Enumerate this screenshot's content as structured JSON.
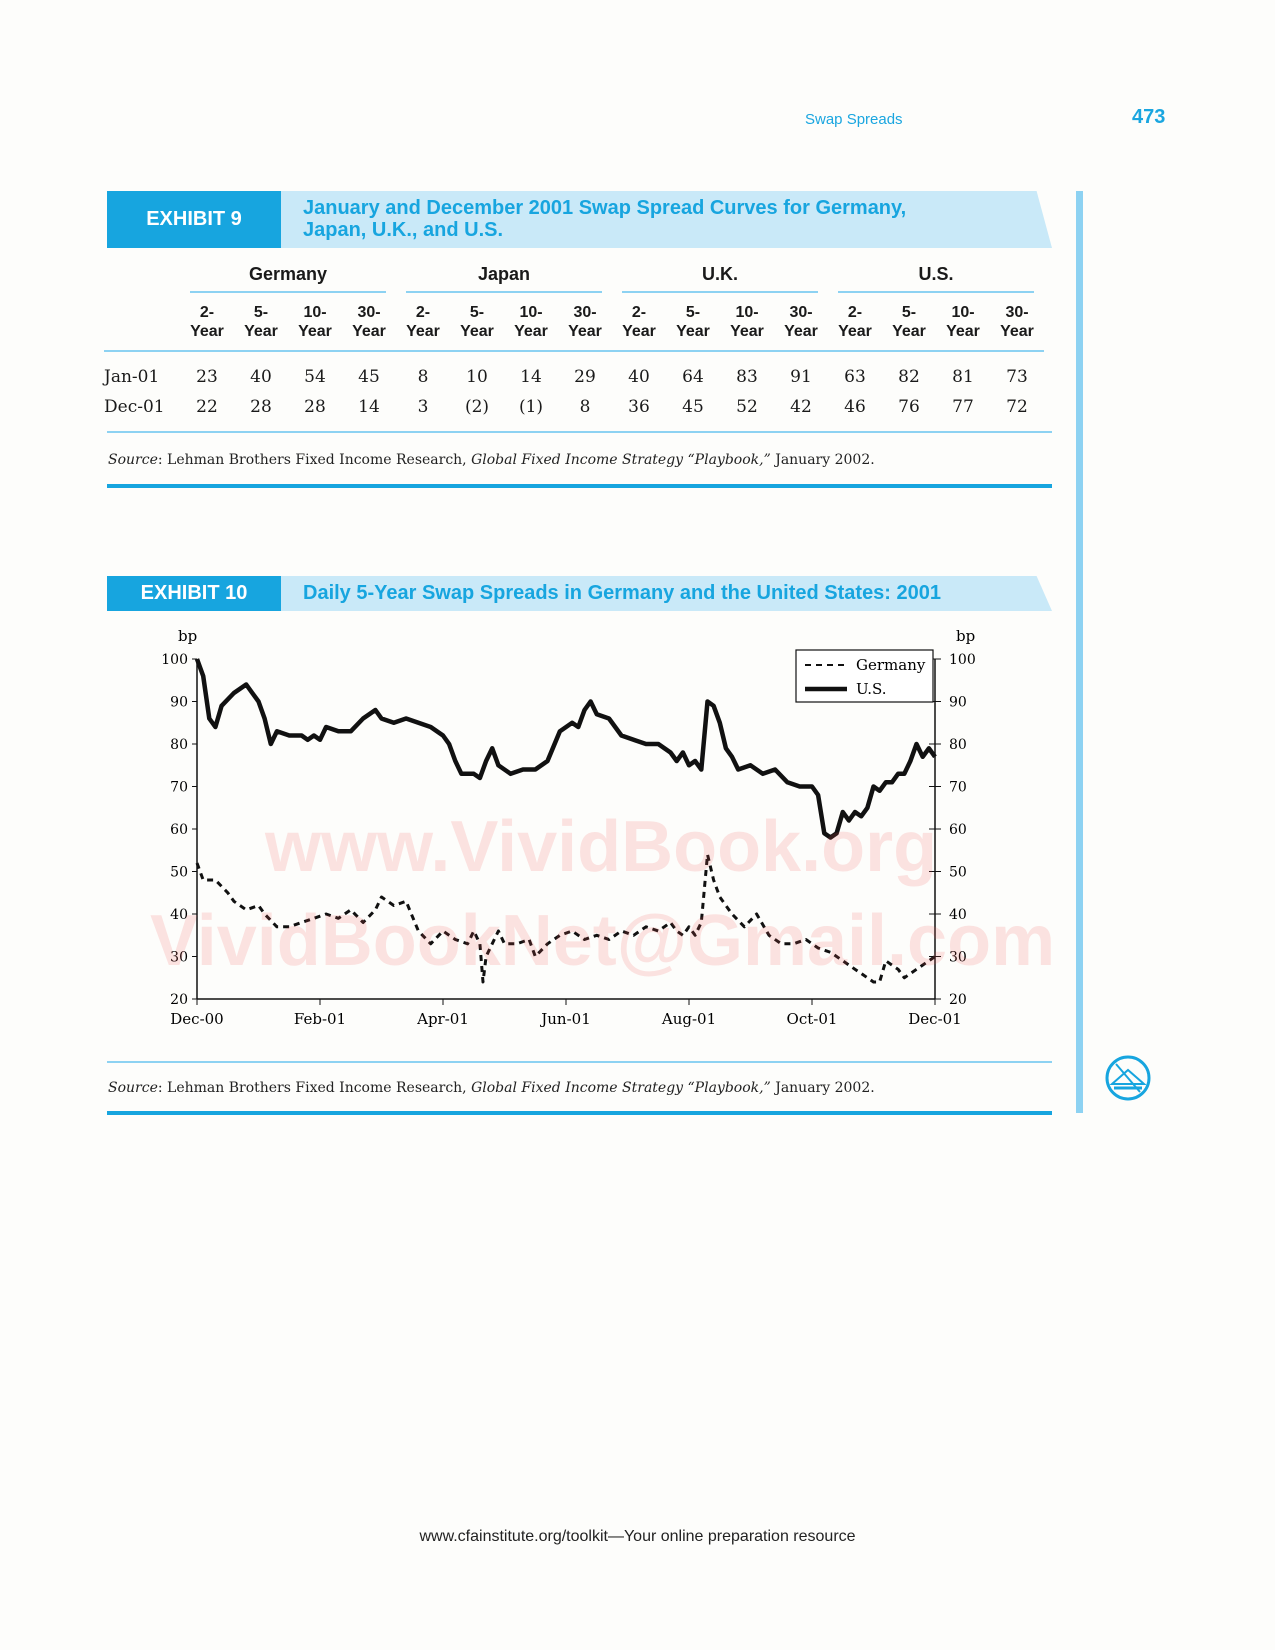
{
  "header": {
    "running_head": "Swap Spreads",
    "page_number": "473"
  },
  "exhibit9": {
    "label": "EXHIBIT 9",
    "title_line1": "January and December 2001 Swap Spread Curves for Germany,",
    "title_line2": "Japan, U.K., and U.S.",
    "countries": [
      "Germany",
      "Japan",
      "U.K.",
      "U.S."
    ],
    "tenors": [
      [
        "2-",
        "Year"
      ],
      [
        "5-",
        "Year"
      ],
      [
        "10-",
        "Year"
      ],
      [
        "30-",
        "Year"
      ],
      [
        "2-",
        "Year"
      ],
      [
        "5-",
        "Year"
      ],
      [
        "10-",
        "Year"
      ],
      [
        "30-",
        "Year"
      ],
      [
        "2-",
        "Year"
      ],
      [
        "5-",
        "Year"
      ],
      [
        "10-",
        "Year"
      ],
      [
        "30-",
        "Year"
      ],
      [
        "2-",
        "Year"
      ],
      [
        "5-",
        "Year"
      ],
      [
        "10-",
        "Year"
      ],
      [
        "30-",
        "Year"
      ]
    ],
    "rows": [
      {
        "label": "Jan-01",
        "values": [
          "23",
          "40",
          "54",
          "45",
          "8",
          "10",
          "14",
          "29",
          "40",
          "64",
          "83",
          "91",
          "63",
          "82",
          "81",
          "73"
        ]
      },
      {
        "label": "Dec-01",
        "values": [
          "22",
          "28",
          "28",
          "14",
          "3",
          "(2)",
          "(1)",
          "8",
          "36",
          "45",
          "52",
          "42",
          "46",
          "76",
          "77",
          "72"
        ]
      }
    ],
    "source": {
      "prefix": "Source",
      "text1": ": Lehman Brothers Fixed Income Research, ",
      "italic": "Global Fixed Income Strategy “Playbook,”",
      "text2": " January 2002."
    }
  },
  "exhibit10": {
    "label": "EXHIBIT 10",
    "title": "Daily 5-Year Swap Spreads in Germany and the United States: 2001",
    "source": {
      "prefix": "Source",
      "text1": ": Lehman Brothers Fixed Income Research, ",
      "italic": "Global Fixed Income Strategy “Playbook,”",
      "text2": " January 2002."
    }
  },
  "chart_data": {
    "type": "line",
    "title": "",
    "ylabel_left": "bp",
    "ylabel_right": "bp",
    "ylim": [
      20,
      100
    ],
    "yticks": [
      20,
      30,
      40,
      50,
      60,
      70,
      80,
      90,
      100
    ],
    "xlim": [
      0,
      12
    ],
    "xticks": [
      {
        "x": 0,
        "label": "Dec-00"
      },
      {
        "x": 2,
        "label": "Feb-01"
      },
      {
        "x": 4,
        "label": "Apr-01"
      },
      {
        "x": 6,
        "label": "Jun-01"
      },
      {
        "x": 8,
        "label": "Aug-01"
      },
      {
        "x": 10,
        "label": "Oct-01"
      },
      {
        "x": 12,
        "label": "Dec-01"
      }
    ],
    "legend_position": "top-right",
    "grid": false,
    "series": [
      {
        "name": "Germany",
        "style": "dashed",
        "points": [
          [
            0,
            52
          ],
          [
            0.1,
            48
          ],
          [
            0.3,
            48
          ],
          [
            0.5,
            45
          ],
          [
            0.6,
            43
          ],
          [
            0.8,
            41
          ],
          [
            1.0,
            42
          ],
          [
            1.1,
            40
          ],
          [
            1.3,
            37
          ],
          [
            1.5,
            37
          ],
          [
            1.7,
            38
          ],
          [
            1.9,
            39
          ],
          [
            2.1,
            40
          ],
          [
            2.3,
            39
          ],
          [
            2.5,
            41
          ],
          [
            2.7,
            38
          ],
          [
            2.9,
            41
          ],
          [
            3.0,
            44
          ],
          [
            3.2,
            42
          ],
          [
            3.4,
            43
          ],
          [
            3.6,
            36
          ],
          [
            3.8,
            33
          ],
          [
            4.0,
            36
          ],
          [
            4.2,
            34
          ],
          [
            4.4,
            33
          ],
          [
            4.5,
            36
          ],
          [
            4.6,
            33
          ],
          [
            4.65,
            24
          ],
          [
            4.7,
            30
          ],
          [
            4.8,
            33
          ],
          [
            4.9,
            36
          ],
          [
            5.0,
            33
          ],
          [
            5.2,
            33
          ],
          [
            5.4,
            34
          ],
          [
            5.5,
            30
          ],
          [
            5.7,
            33
          ],
          [
            5.9,
            35
          ],
          [
            6.1,
            36
          ],
          [
            6.3,
            34
          ],
          [
            6.5,
            35
          ],
          [
            6.7,
            34
          ],
          [
            6.9,
            36
          ],
          [
            7.1,
            35
          ],
          [
            7.3,
            37
          ],
          [
            7.5,
            36
          ],
          [
            7.7,
            38
          ],
          [
            7.8,
            36
          ],
          [
            7.9,
            35
          ],
          [
            8.0,
            37
          ],
          [
            8.1,
            35
          ],
          [
            8.2,
            38
          ],
          [
            8.3,
            54
          ],
          [
            8.4,
            48
          ],
          [
            8.5,
            44
          ],
          [
            8.7,
            40
          ],
          [
            8.9,
            37
          ],
          [
            9.1,
            40
          ],
          [
            9.3,
            35
          ],
          [
            9.5,
            33
          ],
          [
            9.7,
            33
          ],
          [
            9.9,
            34
          ],
          [
            10.1,
            32
          ],
          [
            10.3,
            31
          ],
          [
            10.5,
            29
          ],
          [
            10.7,
            27
          ],
          [
            10.8,
            26
          ],
          [
            11.0,
            24
          ],
          [
            11.1,
            24
          ],
          [
            11.2,
            29
          ],
          [
            11.4,
            27
          ],
          [
            11.5,
            25
          ],
          [
            11.7,
            27
          ],
          [
            11.9,
            29
          ],
          [
            12.0,
            30
          ]
        ]
      },
      {
        "name": "U.S.",
        "style": "solid",
        "points": [
          [
            0,
            100
          ],
          [
            0.1,
            96
          ],
          [
            0.2,
            86
          ],
          [
            0.3,
            84
          ],
          [
            0.4,
            89
          ],
          [
            0.6,
            92
          ],
          [
            0.8,
            94
          ],
          [
            0.9,
            92
          ],
          [
            1.0,
            90
          ],
          [
            1.1,
            86
          ],
          [
            1.2,
            80
          ],
          [
            1.3,
            83
          ],
          [
            1.5,
            82
          ],
          [
            1.7,
            82
          ],
          [
            1.8,
            81
          ],
          [
            1.9,
            82
          ],
          [
            2.0,
            81
          ],
          [
            2.1,
            84
          ],
          [
            2.3,
            83
          ],
          [
            2.5,
            83
          ],
          [
            2.7,
            86
          ],
          [
            2.9,
            88
          ],
          [
            3.0,
            86
          ],
          [
            3.2,
            85
          ],
          [
            3.4,
            86
          ],
          [
            3.6,
            85
          ],
          [
            3.8,
            84
          ],
          [
            4.0,
            82
          ],
          [
            4.1,
            80
          ],
          [
            4.2,
            76
          ],
          [
            4.3,
            73
          ],
          [
            4.5,
            73
          ],
          [
            4.6,
            72
          ],
          [
            4.7,
            76
          ],
          [
            4.8,
            79
          ],
          [
            4.9,
            75
          ],
          [
            5.1,
            73
          ],
          [
            5.3,
            74
          ],
          [
            5.5,
            74
          ],
          [
            5.7,
            76
          ],
          [
            5.9,
            83
          ],
          [
            6.1,
            85
          ],
          [
            6.2,
            84
          ],
          [
            6.3,
            88
          ],
          [
            6.4,
            90
          ],
          [
            6.5,
            87
          ],
          [
            6.7,
            86
          ],
          [
            6.9,
            82
          ],
          [
            7.1,
            81
          ],
          [
            7.3,
            80
          ],
          [
            7.5,
            80
          ],
          [
            7.7,
            78
          ],
          [
            7.8,
            76
          ],
          [
            7.9,
            78
          ],
          [
            8.0,
            75
          ],
          [
            8.1,
            76
          ],
          [
            8.2,
            74
          ],
          [
            8.3,
            90
          ],
          [
            8.4,
            89
          ],
          [
            8.5,
            85
          ],
          [
            8.6,
            79
          ],
          [
            8.7,
            77
          ],
          [
            8.8,
            74
          ],
          [
            9.0,
            75
          ],
          [
            9.2,
            73
          ],
          [
            9.4,
            74
          ],
          [
            9.6,
            71
          ],
          [
            9.8,
            70
          ],
          [
            10.0,
            70
          ],
          [
            10.1,
            68
          ],
          [
            10.2,
            59
          ],
          [
            10.3,
            58
          ],
          [
            10.4,
            59
          ],
          [
            10.5,
            64
          ],
          [
            10.6,
            62
          ],
          [
            10.7,
            64
          ],
          [
            10.8,
            63
          ],
          [
            10.9,
            65
          ],
          [
            11.0,
            70
          ],
          [
            11.1,
            69
          ],
          [
            11.2,
            71
          ],
          [
            11.3,
            71
          ],
          [
            11.4,
            73
          ],
          [
            11.5,
            73
          ],
          [
            11.6,
            76
          ],
          [
            11.7,
            80
          ],
          [
            11.8,
            77
          ],
          [
            11.9,
            79
          ],
          [
            12.0,
            77
          ]
        ]
      }
    ]
  },
  "watermark": {
    "line1": "www.VividBook.org",
    "line2": "VividBookNet@Gmail.com"
  },
  "footer": {
    "text": "www.cfainstitute.org/toolkit—Your online preparation resource"
  }
}
